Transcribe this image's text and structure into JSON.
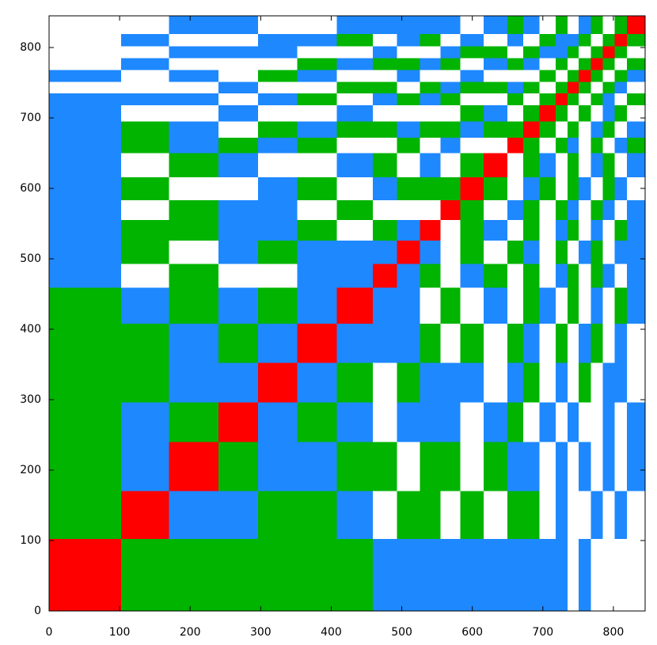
{
  "chart_data": {
    "type": "heatmap",
    "edges": [
      0,
      102,
      170,
      240,
      296,
      352,
      408,
      459,
      493,
      526,
      555,
      583,
      616,
      650,
      672,
      695,
      718,
      735,
      751,
      768,
      785,
      802,
      819,
      845
    ],
    "colors": [
      "#ffffff",
      "#1e88ff",
      "#00b400",
      "#ff0000"
    ],
    "values": [
      [
        3,
        2,
        2,
        2,
        2,
        2,
        2,
        1,
        1,
        1,
        1,
        1,
        1,
        1,
        1,
        1,
        1,
        0,
        1,
        0,
        0,
        0,
        0
      ],
      [
        2,
        3,
        1,
        1,
        2,
        2,
        1,
        0,
        2,
        2,
        0,
        2,
        0,
        2,
        2,
        0,
        1,
        0,
        0,
        1,
        0,
        1,
        0
      ],
      [
        2,
        1,
        3,
        2,
        1,
        1,
        2,
        2,
        0,
        2,
        2,
        0,
        2,
        1,
        1,
        0,
        1,
        0,
        1,
        0,
        1,
        0,
        1
      ],
      [
        2,
        1,
        2,
        3,
        1,
        2,
        1,
        0,
        1,
        1,
        1,
        0,
        1,
        2,
        0,
        1,
        0,
        1,
        0,
        0,
        1,
        0,
        1
      ],
      [
        2,
        2,
        1,
        1,
        3,
        1,
        2,
        0,
        2,
        1,
        1,
        1,
        0,
        1,
        2,
        0,
        1,
        0,
        2,
        0,
        1,
        1,
        0
      ],
      [
        2,
        2,
        1,
        2,
        1,
        3,
        1,
        1,
        1,
        2,
        0,
        2,
        0,
        2,
        1,
        0,
        2,
        0,
        1,
        2,
        0,
        1,
        0
      ],
      [
        2,
        1,
        2,
        1,
        2,
        1,
        3,
        1,
        1,
        0,
        2,
        0,
        1,
        0,
        2,
        1,
        0,
        2,
        0,
        1,
        0,
        2,
        1
      ],
      [
        1,
        0,
        2,
        0,
        0,
        1,
        1,
        3,
        1,
        2,
        0,
        1,
        2,
        0,
        2,
        0,
        1,
        2,
        0,
        2,
        1,
        0,
        1
      ],
      [
        1,
        2,
        0,
        1,
        2,
        1,
        1,
        1,
        3,
        1,
        0,
        2,
        0,
        2,
        1,
        0,
        2,
        0,
        1,
        2,
        0,
        1,
        1
      ],
      [
        1,
        2,
        2,
        1,
        1,
        2,
        0,
        2,
        1,
        3,
        0,
        2,
        1,
        0,
        2,
        0,
        1,
        2,
        0,
        1,
        0,
        2,
        1
      ],
      [
        1,
        0,
        2,
        1,
        1,
        0,
        2,
        0,
        0,
        0,
        3,
        2,
        0,
        1,
        2,
        0,
        2,
        1,
        0,
        2,
        1,
        0,
        1
      ],
      [
        1,
        2,
        0,
        0,
        1,
        2,
        0,
        1,
        2,
        2,
        2,
        3,
        2,
        0,
        1,
        2,
        0,
        2,
        1,
        0,
        2,
        1,
        0
      ],
      [
        1,
        0,
        2,
        1,
        0,
        0,
        1,
        2,
        0,
        1,
        0,
        2,
        3,
        0,
        2,
        1,
        0,
        2,
        0,
        1,
        2,
        0,
        1
      ],
      [
        1,
        2,
        1,
        2,
        1,
        2,
        0,
        0,
        2,
        0,
        1,
        0,
        0,
        3,
        2,
        0,
        2,
        1,
        0,
        2,
        0,
        1,
        2
      ],
      [
        1,
        2,
        1,
        0,
        2,
        1,
        2,
        2,
        1,
        2,
        2,
        1,
        2,
        2,
        3,
        2,
        0,
        2,
        0,
        1,
        2,
        0,
        1
      ],
      [
        1,
        0,
        0,
        1,
        0,
        0,
        1,
        0,
        0,
        0,
        0,
        2,
        1,
        0,
        2,
        3,
        2,
        0,
        2,
        0,
        1,
        2,
        0
      ],
      [
        1,
        1,
        1,
        0,
        1,
        2,
        0,
        1,
        2,
        1,
        2,
        0,
        0,
        2,
        0,
        2,
        3,
        2,
        0,
        2,
        1,
        0,
        2
      ],
      [
        0,
        0,
        0,
        1,
        0,
        0,
        2,
        2,
        0,
        2,
        1,
        2,
        2,
        1,
        2,
        0,
        2,
        3,
        2,
        0,
        2,
        1,
        0
      ],
      [
        1,
        0,
        1,
        0,
        2,
        1,
        0,
        0,
        1,
        0,
        0,
        1,
        0,
        0,
        0,
        2,
        0,
        2,
        3,
        2,
        0,
        2,
        1
      ],
      [
        0,
        1,
        0,
        0,
        0,
        2,
        1,
        2,
        2,
        1,
        2,
        0,
        1,
        2,
        1,
        0,
        2,
        0,
        2,
        3,
        2,
        0,
        2
      ],
      [
        0,
        0,
        1,
        1,
        1,
        0,
        0,
        1,
        0,
        0,
        1,
        2,
        2,
        0,
        2,
        1,
        1,
        2,
        0,
        2,
        3,
        2,
        0
      ],
      [
        0,
        1,
        0,
        0,
        1,
        1,
        2,
        0,
        1,
        2,
        0,
        1,
        0,
        1,
        0,
        2,
        1,
        1,
        2,
        0,
        2,
        3,
        2
      ],
      [
        0,
        0,
        1,
        1,
        0,
        0,
        1,
        1,
        1,
        1,
        1,
        0,
        1,
        2,
        1,
        0,
        2,
        0,
        1,
        2,
        0,
        2,
        3
      ]
    ],
    "xlim": [
      0,
      845
    ],
    "ylim": [
      0,
      845
    ],
    "xticks": [
      0,
      100,
      200,
      300,
      400,
      500,
      600,
      700,
      800
    ],
    "yticks": [
      0,
      100,
      200,
      300,
      400,
      500,
      600,
      700,
      800
    ]
  }
}
